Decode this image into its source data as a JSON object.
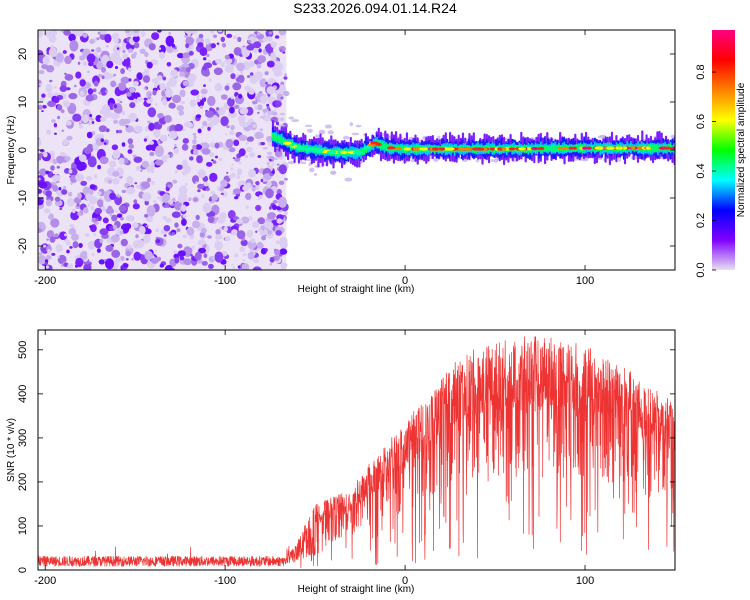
{
  "title": "S233.2026.094.01.14.R24",
  "chart_data": [
    {
      "type": "heatmap",
      "name": "spectrogram",
      "xlabel": "Height of straight line (km)",
      "ylabel": "Frequency (Hz)",
      "xlim": [
        -204,
        150
      ],
      "ylim": [
        -25,
        25
      ],
      "xticks": [
        -200,
        -100,
        0,
        100
      ],
      "yticks": [
        -20,
        -10,
        0,
        10,
        20
      ],
      "xtick_labels": [
        "-200",
        "-100",
        "0",
        "100"
      ],
      "ytick_labels": [
        "-20",
        "-10",
        "0",
        "10",
        "20"
      ],
      "noise_region_x": [
        -204,
        -66
      ],
      "signal_region_x": [
        -66,
        150
      ],
      "signal_center_freq": [
        {
          "x": -75,
          "y": 3.0
        },
        {
          "x": -60,
          "y": 0.5
        },
        {
          "x": -40,
          "y": -0.5
        },
        {
          "x": -25,
          "y": -0.5
        },
        {
          "x": -17,
          "y": 1.5
        },
        {
          "x": -10,
          "y": 0.5
        },
        {
          "x": 0,
          "y": 0.2
        },
        {
          "x": 50,
          "y": 0.2
        },
        {
          "x": 100,
          "y": 0.4
        },
        {
          "x": 150,
          "y": 0.4
        }
      ]
    },
    {
      "type": "colorbar",
      "name": "colorbar",
      "label": "Normalized spectral amplitude",
      "range": [
        0,
        0.97
      ],
      "ticks": [
        0.0,
        0.2,
        0.4,
        0.6,
        0.8
      ],
      "tick_labels": [
        "0.0",
        "0.2",
        "0.4",
        "0.6",
        "0.8"
      ],
      "colors": [
        "#e8e0f0",
        "#8000ff",
        "#0000ff",
        "#00ffff",
        "#00ff00",
        "#ffff00",
        "#ff8000",
        "#ff0000",
        "#ff0080"
      ]
    },
    {
      "type": "line",
      "name": "snr",
      "xlabel": "Height of straight line (km)",
      "ylabel": "SNR (10 * v/v)",
      "xlim": [
        -204,
        150
      ],
      "ylim": [
        0,
        545
      ],
      "xticks": [
        -200,
        -100,
        0,
        100
      ],
      "yticks": [
        0,
        100,
        200,
        300,
        400,
        500
      ],
      "xtick_labels": [
        "-200",
        "-100",
        "0",
        "100"
      ],
      "ytick_labels": [
        "0",
        "100",
        "200",
        "300",
        "400",
        "500"
      ],
      "color": "#ee3333",
      "envelope": [
        {
          "x": -204,
          "y": 20
        },
        {
          "x": -66,
          "y": 20
        },
        {
          "x": -60,
          "y": 60
        },
        {
          "x": -50,
          "y": 130
        },
        {
          "x": -30,
          "y": 160
        },
        {
          "x": -20,
          "y": 210
        },
        {
          "x": -10,
          "y": 250
        },
        {
          "x": 0,
          "y": 300
        },
        {
          "x": 10,
          "y": 330
        },
        {
          "x": 20,
          "y": 380
        },
        {
          "x": 30,
          "y": 420
        },
        {
          "x": 40,
          "y": 440
        },
        {
          "x": 60,
          "y": 460
        },
        {
          "x": 80,
          "y": 465
        },
        {
          "x": 100,
          "y": 445
        },
        {
          "x": 120,
          "y": 410
        },
        {
          "x": 135,
          "y": 360
        },
        {
          "x": 150,
          "y": 340
        }
      ]
    }
  ]
}
